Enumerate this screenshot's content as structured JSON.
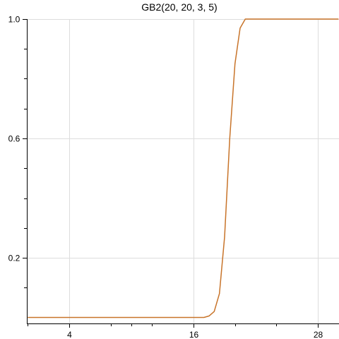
{
  "chart_data": {
    "type": "line",
    "title": "GB2(20, 20, 3, 5)",
    "xlabel": "",
    "ylabel": "",
    "xlim": [
      0.0,
      30.0
    ],
    "ylim": [
      0.0,
      1.0
    ],
    "x_ticks": [
      {
        "value": 4,
        "label": "4"
      },
      {
        "value": 16,
        "label": "16"
      },
      {
        "value": 28,
        "label": "28"
      }
    ],
    "x_minor_ticks": [
      0,
      8,
      10,
      12,
      20,
      24
    ],
    "y_ticks": [
      {
        "value": 0.2,
        "label": "0.2"
      },
      {
        "value": 0.6,
        "label": "0.6"
      },
      {
        "value": 1.0,
        "label": "1.0"
      }
    ],
    "y_minor_ticks": [
      0.1,
      0.3,
      0.4,
      0.5,
      0.7,
      0.8,
      0.9
    ],
    "grid": true,
    "line_color": "#c8742a",
    "series": [
      {
        "name": "",
        "x": [
          0.0,
          2.0,
          4.0,
          6.0,
          8.0,
          10.0,
          12.0,
          14.0,
          16.0,
          17.0,
          17.5,
          18.0,
          18.5,
          19.0,
          19.5,
          20.0,
          20.5,
          21.0,
          21.5,
          22.0,
          23.0,
          24.0,
          26.0,
          28.0,
          30.0
        ],
        "y": [
          0.0,
          0.0,
          0.0,
          0.0,
          0.0,
          0.0,
          0.0,
          0.0,
          0.0,
          0.0,
          0.005,
          0.02,
          0.08,
          0.27,
          0.6,
          0.85,
          0.97,
          1.0,
          1.0,
          1.0,
          1.0,
          1.0,
          1.0,
          1.0,
          1.0
        ]
      }
    ]
  }
}
